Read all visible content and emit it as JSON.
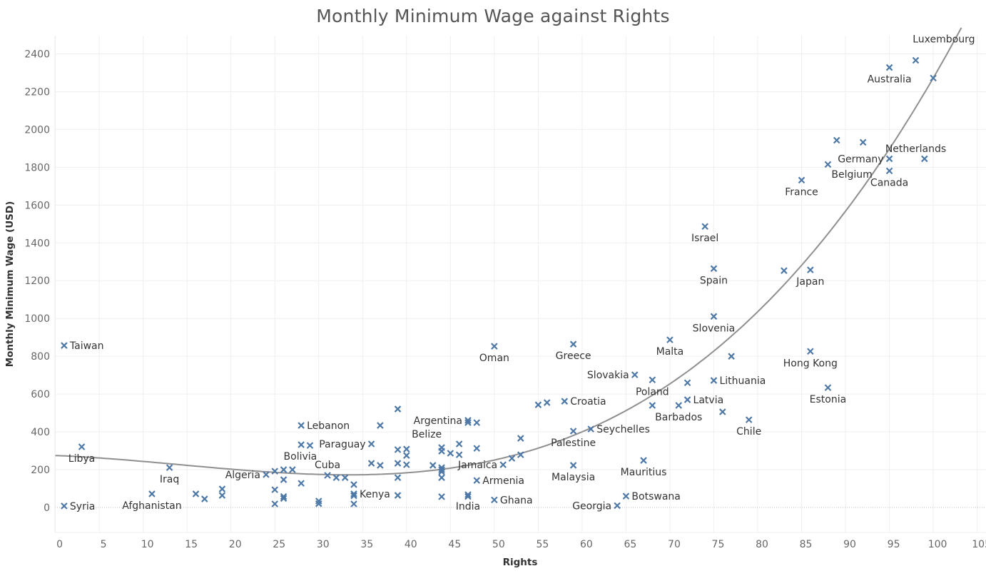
{
  "chart_data": {
    "type": "scatter",
    "title": "Monthly Minimum Wage against Rights",
    "xlabel": "Rights",
    "ylabel": "Monthly Minimum Wage (USD)",
    "xlim": [
      0,
      106
    ],
    "ylim": [
      -130,
      2500
    ],
    "x_ticks": [
      0,
      5,
      10,
      15,
      20,
      25,
      30,
      35,
      40,
      45,
      50,
      55,
      60,
      65,
      70,
      75,
      80,
      85,
      90,
      95,
      100,
      105
    ],
    "y_ticks": [
      0,
      200,
      400,
      600,
      800,
      1000,
      1200,
      1400,
      1600,
      1800,
      2000,
      2200,
      2400
    ],
    "grid": true,
    "marker": "x",
    "marker_color": "#4e79a7",
    "trend_color": "#8f8f8f",
    "trendline": {
      "type": "polynomial",
      "degree": 3,
      "coefficients": [
        275,
        -1.894,
        -0.1622,
        0.003809
      ],
      "x_range": [
        0,
        103.2
      ]
    },
    "points": [
      {
        "x": 1,
        "y": 8,
        "label": "Syria",
        "label_pos": "right"
      },
      {
        "x": 1,
        "y": 857,
        "label": "Taiwan",
        "label_pos": "right"
      },
      {
        "x": 3,
        "y": 321,
        "label": "Libya",
        "label_pos": "below"
      },
      {
        "x": 11,
        "y": 72,
        "label": "Afghanistan",
        "label_pos": "below"
      },
      {
        "x": 13,
        "y": 211,
        "label": "Iraq",
        "label_pos": "below"
      },
      {
        "x": 16,
        "y": 72,
        "label": "",
        "label_pos": ""
      },
      {
        "x": 17,
        "y": 45,
        "label": "",
        "label_pos": ""
      },
      {
        "x": 19,
        "y": 98,
        "label": "",
        "label_pos": ""
      },
      {
        "x": 19,
        "y": 64,
        "label": "",
        "label_pos": ""
      },
      {
        "x": 24,
        "y": 174,
        "label": "Algeria",
        "label_pos": "left"
      },
      {
        "x": 25,
        "y": 192,
        "label": "",
        "label_pos": ""
      },
      {
        "x": 25,
        "y": 94,
        "label": "",
        "label_pos": ""
      },
      {
        "x": 25,
        "y": 19,
        "label": "",
        "label_pos": ""
      },
      {
        "x": 26,
        "y": 200,
        "label": "",
        "label_pos": ""
      },
      {
        "x": 26,
        "y": 147,
        "label": "",
        "label_pos": ""
      },
      {
        "x": 26,
        "y": 58,
        "label": "",
        "label_pos": ""
      },
      {
        "x": 26,
        "y": 48,
        "label": "",
        "label_pos": ""
      },
      {
        "x": 27,
        "y": 200,
        "label": "",
        "label_pos": ""
      },
      {
        "x": 28,
        "y": 434,
        "label": "Lebanon",
        "label_pos": "right"
      },
      {
        "x": 28,
        "y": 332,
        "label": "Bolivia",
        "label_pos": "below"
      },
      {
        "x": 28,
        "y": 128,
        "label": "",
        "label_pos": ""
      },
      {
        "x": 29,
        "y": 328,
        "label": "",
        "label_pos": ""
      },
      {
        "x": 30,
        "y": 34,
        "label": "",
        "label_pos": ""
      },
      {
        "x": 30,
        "y": 20,
        "label": "",
        "label_pos": ""
      },
      {
        "x": 31,
        "y": 170,
        "label": "Cuba",
        "label_pos": "above"
      },
      {
        "x": 32,
        "y": 158,
        "label": "",
        "label_pos": ""
      },
      {
        "x": 33,
        "y": 158,
        "label": "",
        "label_pos": ""
      },
      {
        "x": 34,
        "y": 121,
        "label": "",
        "label_pos": ""
      },
      {
        "x": 34,
        "y": 72,
        "label": "Kenya",
        "label_pos": "right"
      },
      {
        "x": 34,
        "y": 62,
        "label": "",
        "label_pos": ""
      },
      {
        "x": 34,
        "y": 19,
        "label": "",
        "label_pos": ""
      },
      {
        "x": 36,
        "y": 336,
        "label": "Paraguay",
        "label_pos": "left"
      },
      {
        "x": 36,
        "y": 234,
        "label": "",
        "label_pos": ""
      },
      {
        "x": 37,
        "y": 434,
        "label": "",
        "label_pos": ""
      },
      {
        "x": 37,
        "y": 223,
        "label": "",
        "label_pos": ""
      },
      {
        "x": 39,
        "y": 521,
        "label": "",
        "label_pos": ""
      },
      {
        "x": 39,
        "y": 306,
        "label": "",
        "label_pos": ""
      },
      {
        "x": 39,
        "y": 234,
        "label": "",
        "label_pos": ""
      },
      {
        "x": 39,
        "y": 158,
        "label": "",
        "label_pos": ""
      },
      {
        "x": 39,
        "y": 64,
        "label": "",
        "label_pos": ""
      },
      {
        "x": 40,
        "y": 309,
        "label": "",
        "label_pos": ""
      },
      {
        "x": 40,
        "y": 275,
        "label": "",
        "label_pos": ""
      },
      {
        "x": 40,
        "y": 226,
        "label": "",
        "label_pos": ""
      },
      {
        "x": 43,
        "y": 223,
        "label": "",
        "label_pos": ""
      },
      {
        "x": 44,
        "y": 317,
        "label": "Belize",
        "label_pos": "above-left"
      },
      {
        "x": 44,
        "y": 298,
        "label": "",
        "label_pos": ""
      },
      {
        "x": 44,
        "y": 211,
        "label": "",
        "label_pos": ""
      },
      {
        "x": 44,
        "y": 200,
        "label": "",
        "label_pos": ""
      },
      {
        "x": 44,
        "y": 189,
        "label": "",
        "label_pos": ""
      },
      {
        "x": 44,
        "y": 158,
        "label": "",
        "label_pos": ""
      },
      {
        "x": 44,
        "y": 57,
        "label": "",
        "label_pos": ""
      },
      {
        "x": 45,
        "y": 287,
        "label": "",
        "label_pos": ""
      },
      {
        "x": 46,
        "y": 336,
        "label": "",
        "label_pos": ""
      },
      {
        "x": 46,
        "y": 279,
        "label": "",
        "label_pos": ""
      },
      {
        "x": 47,
        "y": 461,
        "label": "Argentina",
        "label_pos": "left"
      },
      {
        "x": 47,
        "y": 449,
        "label": "",
        "label_pos": ""
      },
      {
        "x": 47,
        "y": 68,
        "label": "India",
        "label_pos": "below"
      },
      {
        "x": 47,
        "y": 58,
        "label": "",
        "label_pos": ""
      },
      {
        "x": 48,
        "y": 449,
        "label": "",
        "label_pos": ""
      },
      {
        "x": 48,
        "y": 313,
        "label": "",
        "label_pos": ""
      },
      {
        "x": 48,
        "y": 143,
        "label": "Armenia",
        "label_pos": "right"
      },
      {
        "x": 50,
        "y": 853,
        "label": "Oman",
        "label_pos": "below"
      },
      {
        "x": 50,
        "y": 40,
        "label": "Ghana",
        "label_pos": "right"
      },
      {
        "x": 51,
        "y": 226,
        "label": "Jamaica",
        "label_pos": "left"
      },
      {
        "x": 52,
        "y": 260,
        "label": "",
        "label_pos": ""
      },
      {
        "x": 53,
        "y": 366,
        "label": "",
        "label_pos": ""
      },
      {
        "x": 53,
        "y": 279,
        "label": "",
        "label_pos": ""
      },
      {
        "x": 55,
        "y": 543,
        "label": "",
        "label_pos": ""
      },
      {
        "x": 56,
        "y": 555,
        "label": "",
        "label_pos": ""
      },
      {
        "x": 58,
        "y": 562,
        "label": "Croatia",
        "label_pos": "right"
      },
      {
        "x": 59,
        "y": 864,
        "label": "Greece",
        "label_pos": "below"
      },
      {
        "x": 59,
        "y": 404,
        "label": "Palestine",
        "label_pos": "below"
      },
      {
        "x": 59,
        "y": 223,
        "label": "Malaysia",
        "label_pos": "below"
      },
      {
        "x": 61,
        "y": 415,
        "label": "Seychelles",
        "label_pos": "right"
      },
      {
        "x": 64,
        "y": 10,
        "label": "Georgia",
        "label_pos": "left"
      },
      {
        "x": 65,
        "y": 60,
        "label": "Botswana",
        "label_pos": "right"
      },
      {
        "x": 66,
        "y": 702,
        "label": "Slovakia",
        "label_pos": "left"
      },
      {
        "x": 67,
        "y": 249,
        "label": "Mauritius",
        "label_pos": "below"
      },
      {
        "x": 68,
        "y": 675,
        "label": "Poland",
        "label_pos": "below"
      },
      {
        "x": 68,
        "y": 540,
        "label": "",
        "label_pos": ""
      },
      {
        "x": 70,
        "y": 887,
        "label": "Malta",
        "label_pos": "below"
      },
      {
        "x": 71,
        "y": 540,
        "label": "Barbados",
        "label_pos": "below"
      },
      {
        "x": 72,
        "y": 660,
        "label": "",
        "label_pos": ""
      },
      {
        "x": 72,
        "y": 570,
        "label": "Latvia",
        "label_pos": "right"
      },
      {
        "x": 74,
        "y": 1487,
        "label": "Israel",
        "label_pos": "below"
      },
      {
        "x": 75,
        "y": 1264,
        "label": "Spain",
        "label_pos": "below"
      },
      {
        "x": 75,
        "y": 1011,
        "label": "Slovenia",
        "label_pos": "below"
      },
      {
        "x": 75,
        "y": 672,
        "label": "Lithuania",
        "label_pos": "right"
      },
      {
        "x": 76,
        "y": 506,
        "label": "",
        "label_pos": ""
      },
      {
        "x": 77,
        "y": 800,
        "label": "",
        "label_pos": ""
      },
      {
        "x": 79,
        "y": 464,
        "label": "Chile",
        "label_pos": "below"
      },
      {
        "x": 83,
        "y": 1253,
        "label": "",
        "label_pos": ""
      },
      {
        "x": 85,
        "y": 1732,
        "label": "France",
        "label_pos": "below"
      },
      {
        "x": 86,
        "y": 1257,
        "label": "Japan",
        "label_pos": "below"
      },
      {
        "x": 86,
        "y": 826,
        "label": "Hong Kong",
        "label_pos": "below"
      },
      {
        "x": 88,
        "y": 1815,
        "label": "Belgium",
        "label_pos": "below-right"
      },
      {
        "x": 88,
        "y": 634,
        "label": "Estonia",
        "label_pos": "below"
      },
      {
        "x": 89,
        "y": 1943,
        "label": "",
        "label_pos": ""
      },
      {
        "x": 92,
        "y": 1932,
        "label": "",
        "label_pos": ""
      },
      {
        "x": 95,
        "y": 2328,
        "label": "Australia",
        "label_pos": "below"
      },
      {
        "x": 95,
        "y": 1845,
        "label": "Germany",
        "label_pos": "left"
      },
      {
        "x": 95,
        "y": 1781,
        "label": "Canada",
        "label_pos": "below"
      },
      {
        "x": 98,
        "y": 2366,
        "label": "Luxembourg",
        "label_pos": "above-right"
      },
      {
        "x": 99,
        "y": 1845,
        "label": "Netherlands",
        "label_pos": "above-left"
      },
      {
        "x": 100,
        "y": 2272,
        "label": "",
        "label_pos": ""
      }
    ]
  }
}
